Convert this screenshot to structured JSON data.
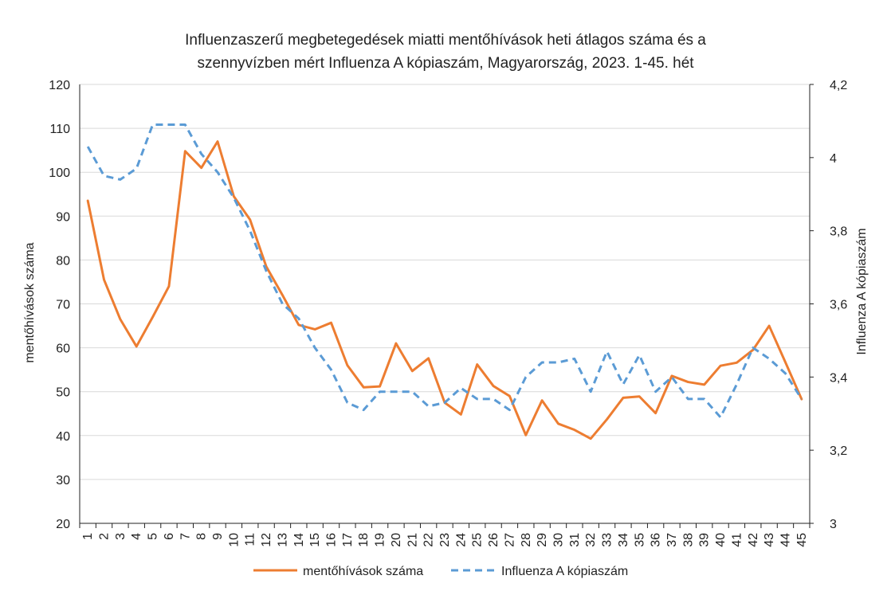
{
  "chart_data": {
    "type": "line",
    "title_line1": "Influenzaszerű megbetegedések miatti mentőhívások heti átlagos száma és a",
    "title_line2": "szennyvízben mért Influenza A kópiaszám, Magyarország, 2023. 1-45. hét",
    "x": [
      1,
      2,
      3,
      4,
      5,
      6,
      7,
      8,
      9,
      10,
      11,
      12,
      13,
      14,
      15,
      16,
      17,
      18,
      19,
      20,
      21,
      22,
      23,
      24,
      25,
      26,
      27,
      28,
      29,
      30,
      31,
      32,
      33,
      34,
      35,
      36,
      37,
      38,
      39,
      40,
      41,
      42,
      43,
      44,
      45
    ],
    "xlabel": "",
    "ylabel_left": "mentőhívások száma",
    "ylabel_right": "Influenza A kópiaszám",
    "ylim_left": [
      20,
      120
    ],
    "yticks_left": [
      "20",
      "30",
      "40",
      "50",
      "60",
      "70",
      "80",
      "90",
      "100",
      "110",
      "120"
    ],
    "ylim_right": [
      3,
      4.2
    ],
    "yticks_right": [
      "3",
      "3,2",
      "3,4",
      "3,6",
      "3,8",
      "4",
      "4,2"
    ],
    "grid": true,
    "legend_position": "bottom",
    "series": [
      {
        "name": "mentőhívások száma",
        "axis": "left",
        "color": "#ed7d31",
        "style": "solid",
        "values": [
          93.5,
          75.5,
          66.5,
          60.3,
          67,
          74,
          104.8,
          101,
          107,
          94.5,
          89.2,
          78.5,
          72,
          65.2,
          64.2,
          65.7,
          56,
          51,
          51.2,
          61,
          54.7,
          57.6,
          47.5,
          44.8,
          56.2,
          51.3,
          49,
          40.1,
          48,
          42.7,
          41.3,
          39.3,
          43.7,
          48.6,
          48.9,
          45.1,
          53.6,
          52.2,
          51.6,
          55.9,
          56.6,
          59.5,
          65,
          56.7,
          48.3
        ]
      },
      {
        "name": "Influenza A kópiaszám",
        "axis": "right",
        "color": "#5b9bd5",
        "style": "dashed",
        "values": [
          4.03,
          3.95,
          3.94,
          3.97,
          4.09,
          4.09,
          4.09,
          4.01,
          3.96,
          3.89,
          3.8,
          3.69,
          3.6,
          3.56,
          3.48,
          3.42,
          3.33,
          3.31,
          3.36,
          3.36,
          3.36,
          3.32,
          3.33,
          3.37,
          3.34,
          3.34,
          3.31,
          3.4,
          3.44,
          3.44,
          3.45,
          3.36,
          3.47,
          3.38,
          3.46,
          3.36,
          3.4,
          3.34,
          3.34,
          3.29,
          3.38,
          3.48,
          3.45,
          3.41,
          3.34
        ]
      }
    ]
  }
}
